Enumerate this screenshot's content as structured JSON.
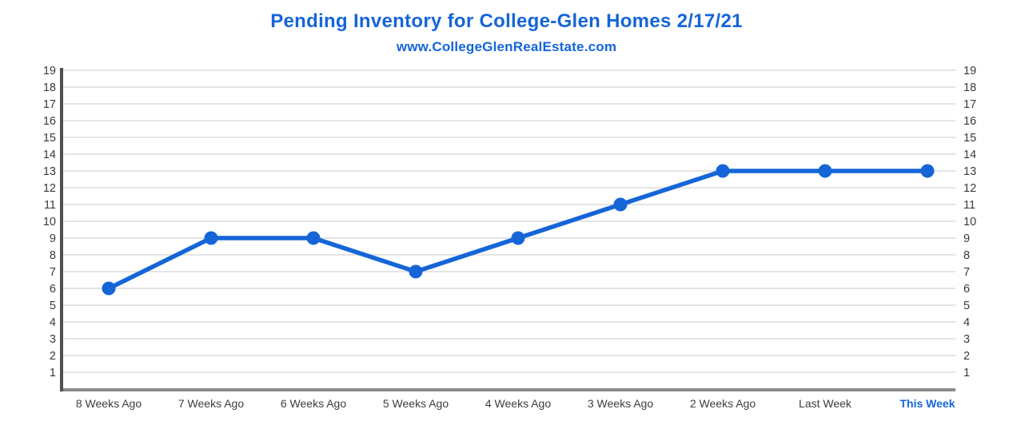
{
  "header": {
    "title": "Pending Inventory for College-Glen Homes 2/17/21",
    "subtitle": "www.CollegeGlenRealEstate.com"
  },
  "colors": {
    "accent_blue": "#1565D8",
    "grid_line": "#e4e4e4",
    "left_axis": "#4f4f4f",
    "bottom_axis": "#8a8a8a",
    "tick_label": "#3a3a3a",
    "category_label": "#3d3d3d"
  },
  "chart_data": {
    "type": "line",
    "title": "Pending Inventory for College-Glen Homes 2/17/21",
    "subtitle": "www.CollegeGlenRealEstate.com",
    "categories": [
      "8 Weeks Ago",
      "7 Weeks Ago",
      "6 Weeks Ago",
      "5 Weeks Ago",
      "4 Weeks Ago",
      "3 Weeks Ago",
      "2 Weeks Ago",
      "Last Week",
      "This Week"
    ],
    "values": [
      6,
      9,
      9,
      7,
      9,
      11,
      13,
      13,
      13
    ],
    "series_name": "Pending Inventory",
    "yticks": [
      1,
      2,
      3,
      4,
      5,
      6,
      7,
      8,
      9,
      10,
      11,
      12,
      13,
      14,
      15,
      16,
      17,
      18,
      19
    ],
    "ylim": [
      0,
      19.2
    ],
    "xlabel": "",
    "ylabel": "",
    "grid": true,
    "legend_position": "none",
    "y_axis_sides": [
      "left",
      "right"
    ],
    "highlighted_category": "This Week",
    "line_color": "#1565D8",
    "marker": "circle"
  }
}
